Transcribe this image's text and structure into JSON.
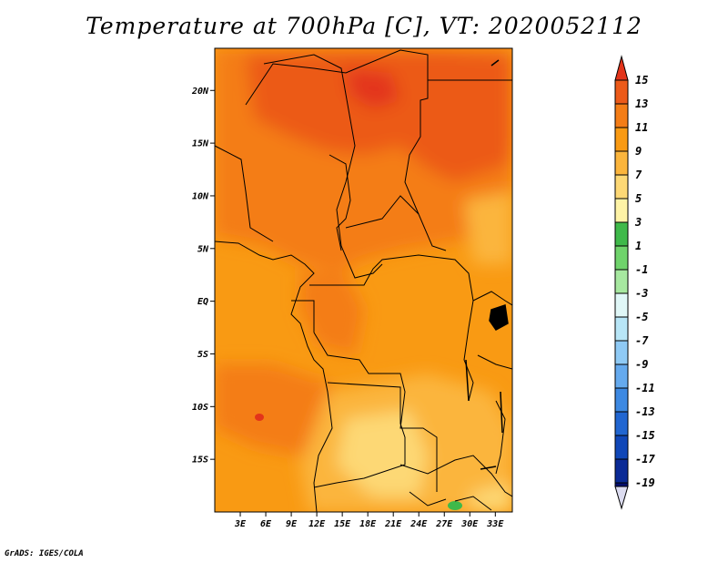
{
  "title": "Temperature at 700hPa [C], VT: 2020052112",
  "footer": "GrADS: IGES/COLA",
  "map": {
    "lon_range": [
      0,
      35
    ],
    "lat_range": [
      -20,
      24
    ],
    "lat_ticks": [
      {
        "value": 20,
        "label": "20N"
      },
      {
        "value": 15,
        "label": "15N"
      },
      {
        "value": 10,
        "label": "10N"
      },
      {
        "value": 5,
        "label": "5N"
      },
      {
        "value": 0,
        "label": "EQ"
      },
      {
        "value": -5,
        "label": "5S"
      },
      {
        "value": -10,
        "label": "10S"
      },
      {
        "value": -15,
        "label": "15S"
      }
    ],
    "lon_ticks": [
      {
        "value": 3,
        "label": "3E"
      },
      {
        "value": 6,
        "label": "6E"
      },
      {
        "value": 9,
        "label": "9E"
      },
      {
        "value": 12,
        "label": "12E"
      },
      {
        "value": 15,
        "label": "15E"
      },
      {
        "value": 18,
        "label": "18E"
      },
      {
        "value": 21,
        "label": "21E"
      },
      {
        "value": 24,
        "label": "24E"
      },
      {
        "value": 27,
        "label": "27E"
      },
      {
        "value": 30,
        "label": "30E"
      },
      {
        "value": 33,
        "label": "33E"
      }
    ]
  },
  "colorbar": {
    "levels": [
      {
        "label": "15",
        "color": "#e3341a"
      },
      {
        "label": "13",
        "color": "#ec5a19"
      },
      {
        "label": "11",
        "color": "#f47d16"
      },
      {
        "label": "9",
        "color": "#f99a13"
      },
      {
        "label": "7",
        "color": "#fbb53c"
      },
      {
        "label": "5",
        "color": "#fdd875"
      },
      {
        "label": "3",
        "color": "#fef3a6"
      },
      {
        "label": "1",
        "color": "#3fb94a"
      },
      {
        "label": "-1",
        "color": "#6fd36b"
      },
      {
        "label": "-3",
        "color": "#a7e8a0"
      },
      {
        "label": "-5",
        "color": "#e0f7f7"
      },
      {
        "label": "-7",
        "color": "#b8e6f7"
      },
      {
        "label": "-9",
        "color": "#8fcaf5"
      },
      {
        "label": "-11",
        "color": "#65aaee"
      },
      {
        "label": "-13",
        "color": "#3d89e2"
      },
      {
        "label": "-15",
        "color": "#2166d1"
      },
      {
        "label": "-17",
        "color": "#1047b8"
      },
      {
        "label": "-19",
        "color": "#0a2a96"
      }
    ],
    "bottom_color": "#040e6e",
    "low_arrow_color": "#dcdcf0"
  }
}
